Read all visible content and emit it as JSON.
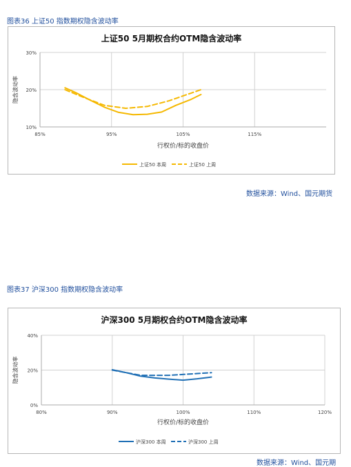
{
  "figure1": {
    "caption": "图表36 上证50 指数期权隐含波动率",
    "source": "数据来源：Wind、国元期货"
  },
  "figure2": {
    "caption": "图表37 沪深300 指数期权隐含波动率",
    "source": "数据来源：Wind、国元期"
  },
  "chart_data": [
    {
      "type": "line",
      "title": "上证50 5月期权合约OTM隐含波动率",
      "xlabel": "行权价/标的收盘价",
      "ylabel": "隐含波动率",
      "xlim": [
        85,
        125
      ],
      "ylim": [
        10,
        30
      ],
      "x_ticks": [
        85,
        95,
        105,
        115
      ],
      "x_tick_labels": [
        "85%",
        "95%",
        "105%",
        "115%"
      ],
      "y_ticks": [
        10,
        20,
        30
      ],
      "y_tick_labels": [
        "10%",
        "20%",
        "30%"
      ],
      "grid": true,
      "legend": "bottom",
      "series": [
        {
          "name": "上证50 本周",
          "style": "solid",
          "color": "#f5b800",
          "x": [
            88.5,
            90,
            92,
            94,
            96,
            98,
            100,
            102,
            104,
            106,
            107.5
          ],
          "y": [
            20.5,
            19.2,
            17.2,
            15.3,
            13.9,
            13.3,
            13.4,
            14.0,
            15.8,
            17.3,
            18.7
          ]
        },
        {
          "name": "上证50 上周",
          "style": "dashed",
          "color": "#f5b800",
          "x": [
            88.5,
            91,
            94,
            97,
            100,
            103,
            106,
            107.5
          ],
          "y": [
            20.0,
            18.0,
            15.8,
            15.0,
            15.5,
            17.0,
            19.0,
            20.0
          ]
        }
      ]
    },
    {
      "type": "line",
      "title": "沪深300 5月期权合约OTM隐含波动率",
      "xlabel": "行权价/标的收盘价",
      "ylabel": "隐含波动率",
      "xlim": [
        80,
        120
      ],
      "ylim": [
        0,
        40
      ],
      "x_ticks": [
        80,
        90,
        100,
        110,
        120
      ],
      "x_tick_labels": [
        "80%",
        "90%",
        "100%",
        "110%",
        "120%"
      ],
      "y_ticks": [
        0,
        20,
        40
      ],
      "y_tick_labels": [
        "0%",
        "20%",
        "40%"
      ],
      "grid": true,
      "legend": "bottom",
      "series": [
        {
          "name": "沪深300 本周",
          "style": "solid",
          "color": "#1f6fb5",
          "x": [
            90,
            92,
            94,
            96,
            98,
            100,
            102,
            104
          ],
          "y": [
            20.2,
            18.5,
            16.5,
            15.5,
            14.8,
            14.2,
            15.0,
            16.0
          ]
        },
        {
          "name": "沪深300 上周",
          "style": "dashed",
          "color": "#1f6fb5",
          "x": [
            90,
            94,
            98,
            102,
            104
          ],
          "y": [
            20.0,
            17.0,
            17.0,
            18.0,
            18.5
          ]
        }
      ]
    }
  ]
}
